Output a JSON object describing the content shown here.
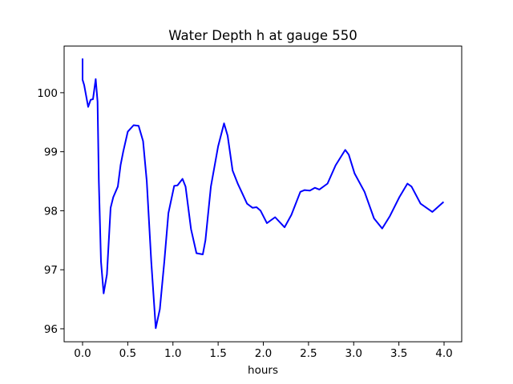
{
  "chart_data": {
    "type": "line",
    "title": "Water Depth h at gauge 550",
    "xlabel": "hours",
    "ylabel": "",
    "xlim": [
      -0.204,
      4.195
    ],
    "ylim": [
      95.78,
      100.79
    ],
    "xticks": [
      0.0,
      0.5,
      1.0,
      1.5,
      2.0,
      2.5,
      3.0,
      3.5,
      4.0
    ],
    "xtick_labels": [
      "0.0",
      "0.5",
      "1.0",
      "1.5",
      "2.0",
      "2.5",
      "3.0",
      "3.5",
      "4.0"
    ],
    "yticks": [
      96,
      97,
      98,
      99,
      100
    ],
    "ytick_labels": [
      "96",
      "97",
      "98",
      "99",
      "100"
    ],
    "grid": false,
    "series": [
      {
        "name": "h",
        "color": "#0000ff",
        "x": [
          0,
          0,
          0.018,
          0.062,
          0.09,
          0.115,
          0.145,
          0.166,
          0.18,
          0.204,
          0.233,
          0.27,
          0.31,
          0.34,
          0.39,
          0.42,
          0.45,
          0.5,
          0.565,
          0.62,
          0.67,
          0.71,
          0.76,
          0.81,
          0.855,
          0.905,
          0.95,
          1.014,
          1.05,
          1.106,
          1.14,
          1.2,
          1.26,
          1.33,
          1.36,
          1.42,
          1.5,
          1.565,
          1.605,
          1.66,
          1.72,
          1.76,
          1.82,
          1.88,
          1.925,
          1.97,
          2.04,
          2.13,
          2.235,
          2.31,
          2.41,
          2.457,
          2.515,
          2.57,
          2.62,
          2.71,
          2.8,
          2.906,
          2.945,
          3.01,
          3.12,
          3.225,
          3.315,
          3.4,
          3.505,
          3.595,
          3.64,
          3.74,
          3.87,
          3.995
        ],
        "y": [
          100.58,
          100.22,
          100.13,
          99.76,
          99.88,
          99.89,
          100.23,
          99.85,
          98.5,
          97.14,
          96.6,
          96.92,
          98.05,
          98.23,
          98.41,
          98.77,
          99.0,
          99.34,
          99.45,
          99.44,
          99.18,
          98.5,
          97.14,
          96.01,
          96.33,
          97.14,
          97.96,
          98.42,
          98.43,
          98.54,
          98.41,
          97.69,
          97.28,
          97.26,
          97.5,
          98.41,
          99.09,
          99.48,
          99.27,
          98.68,
          98.45,
          98.32,
          98.12,
          98.05,
          98.06,
          98.0,
          97.79,
          97.89,
          97.72,
          97.93,
          98.32,
          98.35,
          98.34,
          98.39,
          98.36,
          98.46,
          98.77,
          99.03,
          98.95,
          98.63,
          98.32,
          97.87,
          97.7,
          97.91,
          98.23,
          98.46,
          98.41,
          98.12,
          97.98,
          98.15
        ]
      }
    ]
  }
}
